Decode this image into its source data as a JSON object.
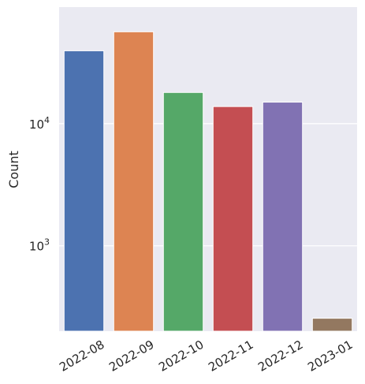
{
  "chart_data": {
    "type": "bar",
    "title": "",
    "xlabel": "",
    "ylabel": "Count",
    "yscale": "log",
    "ylim": [
      200,
      90000
    ],
    "yticks": [
      1000,
      10000
    ],
    "ytick_labels": [
      {
        "base": "10",
        "exp": "3"
      },
      {
        "base": "10",
        "exp": "4"
      }
    ],
    "categories": [
      "2022-08",
      "2022-09",
      "2022-10",
      "2022-11",
      "2022-12",
      "2023-01"
    ],
    "values": [
      39500,
      56500,
      18000,
      13800,
      15000,
      255
    ],
    "colors": [
      "#4c72b0",
      "#dd8452",
      "#55a868",
      "#c44e52",
      "#8172b3",
      "#937860"
    ],
    "grid": true,
    "background": "#eaeaf2",
    "legend": "none"
  }
}
